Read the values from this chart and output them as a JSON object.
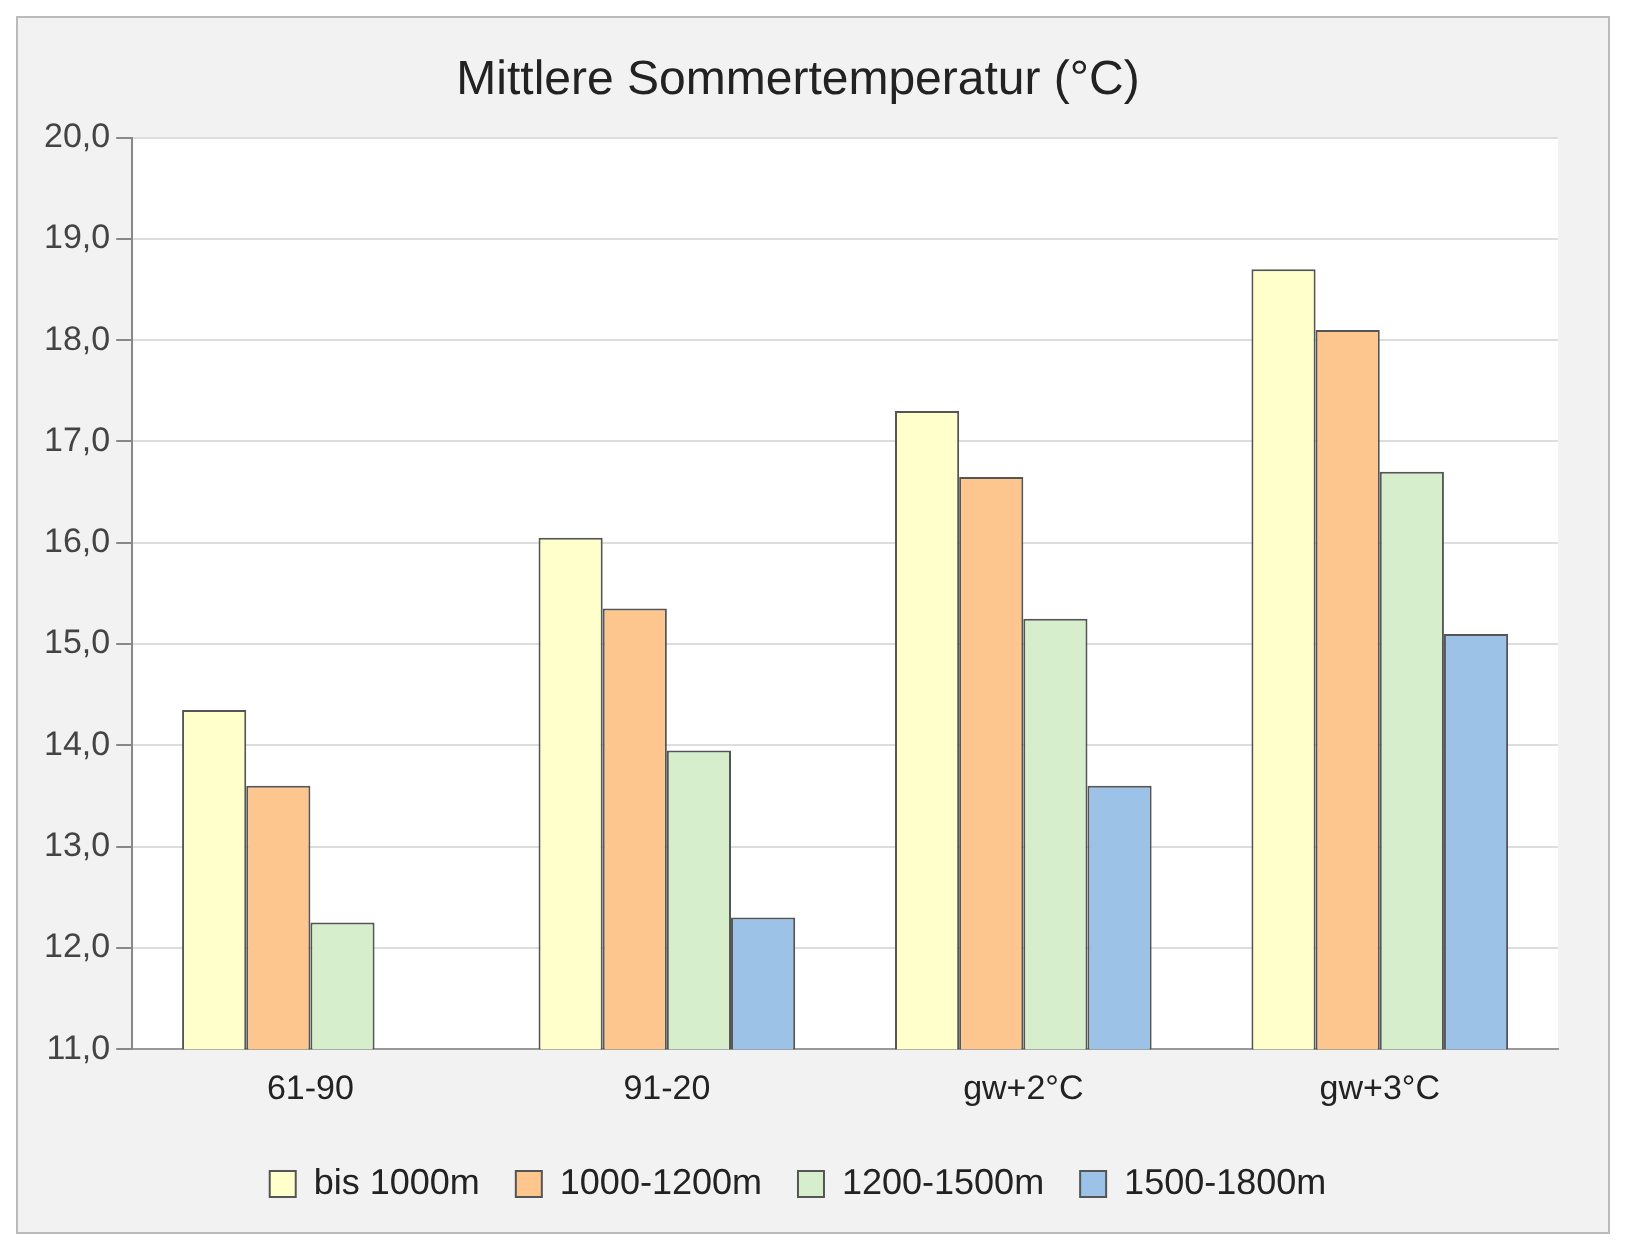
{
  "chart_data": {
    "type": "bar",
    "title": "Mittlere Sommertemperatur (°C)",
    "categories": [
      "61-90",
      "91-20",
      "gw+2°C",
      "gw+3°C"
    ],
    "series": [
      {
        "name": "bis 1000m",
        "color": "#ffffcc",
        "values": [
          14.35,
          16.05,
          17.3,
          18.7
        ]
      },
      {
        "name": "1000-1200m",
        "color": "#fcc68e",
        "values": [
          13.6,
          15.35,
          16.65,
          18.1
        ]
      },
      {
        "name": "1200-1500m",
        "color": "#d6eecb",
        "values": [
          12.25,
          13.95,
          15.25,
          16.7
        ]
      },
      {
        "name": "1500-1800m",
        "color": "#9cc2e8",
        "values": [
          null,
          12.3,
          13.6,
          15.1
        ]
      }
    ],
    "ylim": [
      11,
      20
    ],
    "yticks": [
      {
        "value": 11,
        "label": "11,0"
      },
      {
        "value": 12,
        "label": "12,0"
      },
      {
        "value": 13,
        "label": "13,0"
      },
      {
        "value": 14,
        "label": "14,0"
      },
      {
        "value": 15,
        "label": "15,0"
      },
      {
        "value": 16,
        "label": "16,0"
      },
      {
        "value": 17,
        "label": "17,0"
      },
      {
        "value": 18,
        "label": "18,0"
      },
      {
        "value": 19,
        "label": "19,0"
      },
      {
        "value": 20,
        "label": "20,0"
      }
    ],
    "grid": "y",
    "legend": "bottom"
  }
}
